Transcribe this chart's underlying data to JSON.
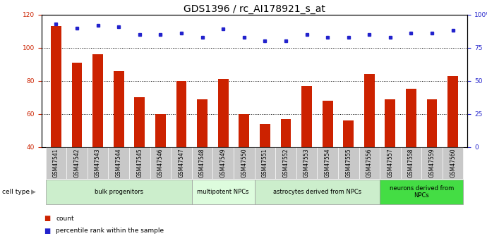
{
  "title": "GDS1396 / rc_AI178921_s_at",
  "samples": [
    "GSM47541",
    "GSM47542",
    "GSM47543",
    "GSM47544",
    "GSM47545",
    "GSM47546",
    "GSM47547",
    "GSM47548",
    "GSM47549",
    "GSM47550",
    "GSM47551",
    "GSM47552",
    "GSM47553",
    "GSM47554",
    "GSM47555",
    "GSM47556",
    "GSM47557",
    "GSM47558",
    "GSM47559",
    "GSM47560"
  ],
  "counts": [
    113,
    91,
    96,
    86,
    70,
    60,
    80,
    69,
    81,
    60,
    54,
    57,
    77,
    68,
    56,
    84,
    69,
    75,
    69,
    83
  ],
  "percentiles": [
    93,
    90,
    92,
    91,
    85,
    85,
    86,
    83,
    89,
    83,
    80,
    80,
    85,
    83,
    83,
    85,
    83,
    86,
    86,
    88
  ],
  "ylim_left": [
    40,
    120
  ],
  "ylim_right": [
    0,
    100
  ],
  "bar_color": "#cc2200",
  "dot_color": "#2222cc",
  "grid_color": "#888888",
  "cell_type_groups": [
    {
      "label": "bulk progenitors",
      "start": 0,
      "end": 7,
      "color": "#cceecc"
    },
    {
      "label": "multipotent NPCs",
      "start": 7,
      "end": 10,
      "color": "#ddfcdd"
    },
    {
      "label": "astrocytes derived from NPCs",
      "start": 10,
      "end": 16,
      "color": "#cceecc"
    },
    {
      "label": "neurons derived from\nNPCs",
      "start": 16,
      "end": 20,
      "color": "#44dd44"
    }
  ],
  "legend_items": [
    {
      "label": "count",
      "color": "#cc2200"
    },
    {
      "label": "percentile rank within the sample",
      "color": "#2222cc"
    }
  ],
  "left_yticks": [
    40,
    60,
    80,
    100,
    120
  ],
  "right_yticks": [
    0,
    25,
    50,
    75,
    100
  ],
  "right_yticklabels": [
    "0",
    "25",
    "50",
    "75",
    "100%"
  ],
  "xlabel_color": "#cc2200",
  "ylabel_right_color": "#2222cc",
  "cell_type_label": "cell type",
  "title_fontsize": 10,
  "tick_fontsize": 6.5,
  "bar_width": 0.5,
  "xlim": [
    -0.7,
    19.7
  ]
}
